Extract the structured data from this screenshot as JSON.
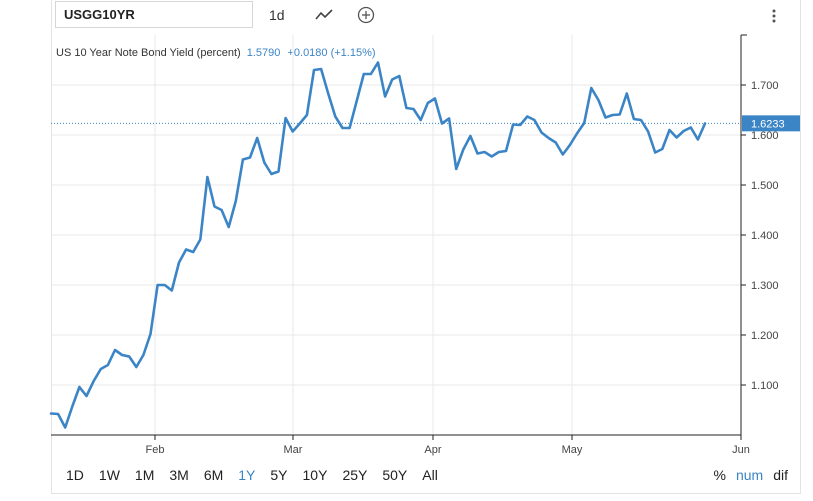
{
  "toolbar": {
    "symbol": "USGG10YR",
    "interval": "1d",
    "icons": [
      "line-chart-icon",
      "plus-icon",
      "more-vertical-icon"
    ]
  },
  "legend": {
    "name": "US 10 Year Note Bond Yield (percent)",
    "value": "1.5790",
    "change": "+0.0180 (+1.15%)"
  },
  "last_price_label": "1.6233",
  "colors": {
    "series": "#3b85c6",
    "accent": "#3b85c6",
    "grid": "#e8e8e8",
    "axis": "#222222"
  },
  "range_buttons": [
    {
      "label": "1D"
    },
    {
      "label": "1W"
    },
    {
      "label": "1M"
    },
    {
      "label": "3M"
    },
    {
      "label": "6M"
    },
    {
      "label": "1Y",
      "active": true
    },
    {
      "label": "5Y"
    },
    {
      "label": "10Y"
    },
    {
      "label": "25Y"
    },
    {
      "label": "50Y"
    },
    {
      "label": "All"
    }
  ],
  "mode_buttons": [
    {
      "label": "%"
    },
    {
      "label": "num",
      "active": true
    },
    {
      "label": "dif"
    }
  ],
  "chart_data": {
    "type": "line",
    "title": "US 10 Year Note Bond Yield (percent)",
    "xlabel": "",
    "ylabel": "",
    "x_tick_labels": [
      "Feb",
      "Mar",
      "Apr",
      "May",
      "Jun"
    ],
    "y_ticks": [
      1.1,
      1.2,
      1.3,
      1.4,
      1.5,
      1.6,
      1.7
    ],
    "y_tick_labels": [
      "1.100",
      "1.200",
      "1.300",
      "1.400",
      "1.500",
      "1.600",
      "1.700"
    ],
    "ylim": [
      1.0,
      1.8
    ],
    "last_value": 1.6233,
    "grid": true,
    "series": [
      {
        "values": [
          1.043,
          1.042,
          1.015,
          1.057,
          1.096,
          1.078,
          1.108,
          1.132,
          1.14,
          1.17,
          1.16,
          1.157,
          1.136,
          1.16,
          1.202,
          1.3,
          1.3,
          1.289,
          1.345,
          1.371,
          1.366,
          1.391,
          1.516,
          1.457,
          1.45,
          1.416,
          1.468,
          1.551,
          1.555,
          1.594,
          1.545,
          1.522,
          1.527,
          1.634,
          1.607,
          1.623,
          1.64,
          1.73,
          1.732,
          1.683,
          1.637,
          1.614,
          1.614,
          1.668,
          1.722,
          1.722,
          1.745,
          1.677,
          1.711,
          1.718,
          1.654,
          1.652,
          1.63,
          1.664,
          1.673,
          1.623,
          1.633,
          1.532,
          1.571,
          1.598,
          1.563,
          1.566,
          1.557,
          1.566,
          1.568,
          1.621,
          1.62,
          1.637,
          1.63,
          1.605,
          1.594,
          1.585,
          1.561,
          1.58,
          1.603,
          1.624,
          1.694,
          1.67,
          1.635,
          1.64,
          1.641,
          1.683,
          1.632,
          1.63,
          1.607,
          1.565,
          1.572,
          1.61,
          1.595,
          1.608,
          1.615,
          1.591,
          1.623
        ]
      }
    ]
  }
}
